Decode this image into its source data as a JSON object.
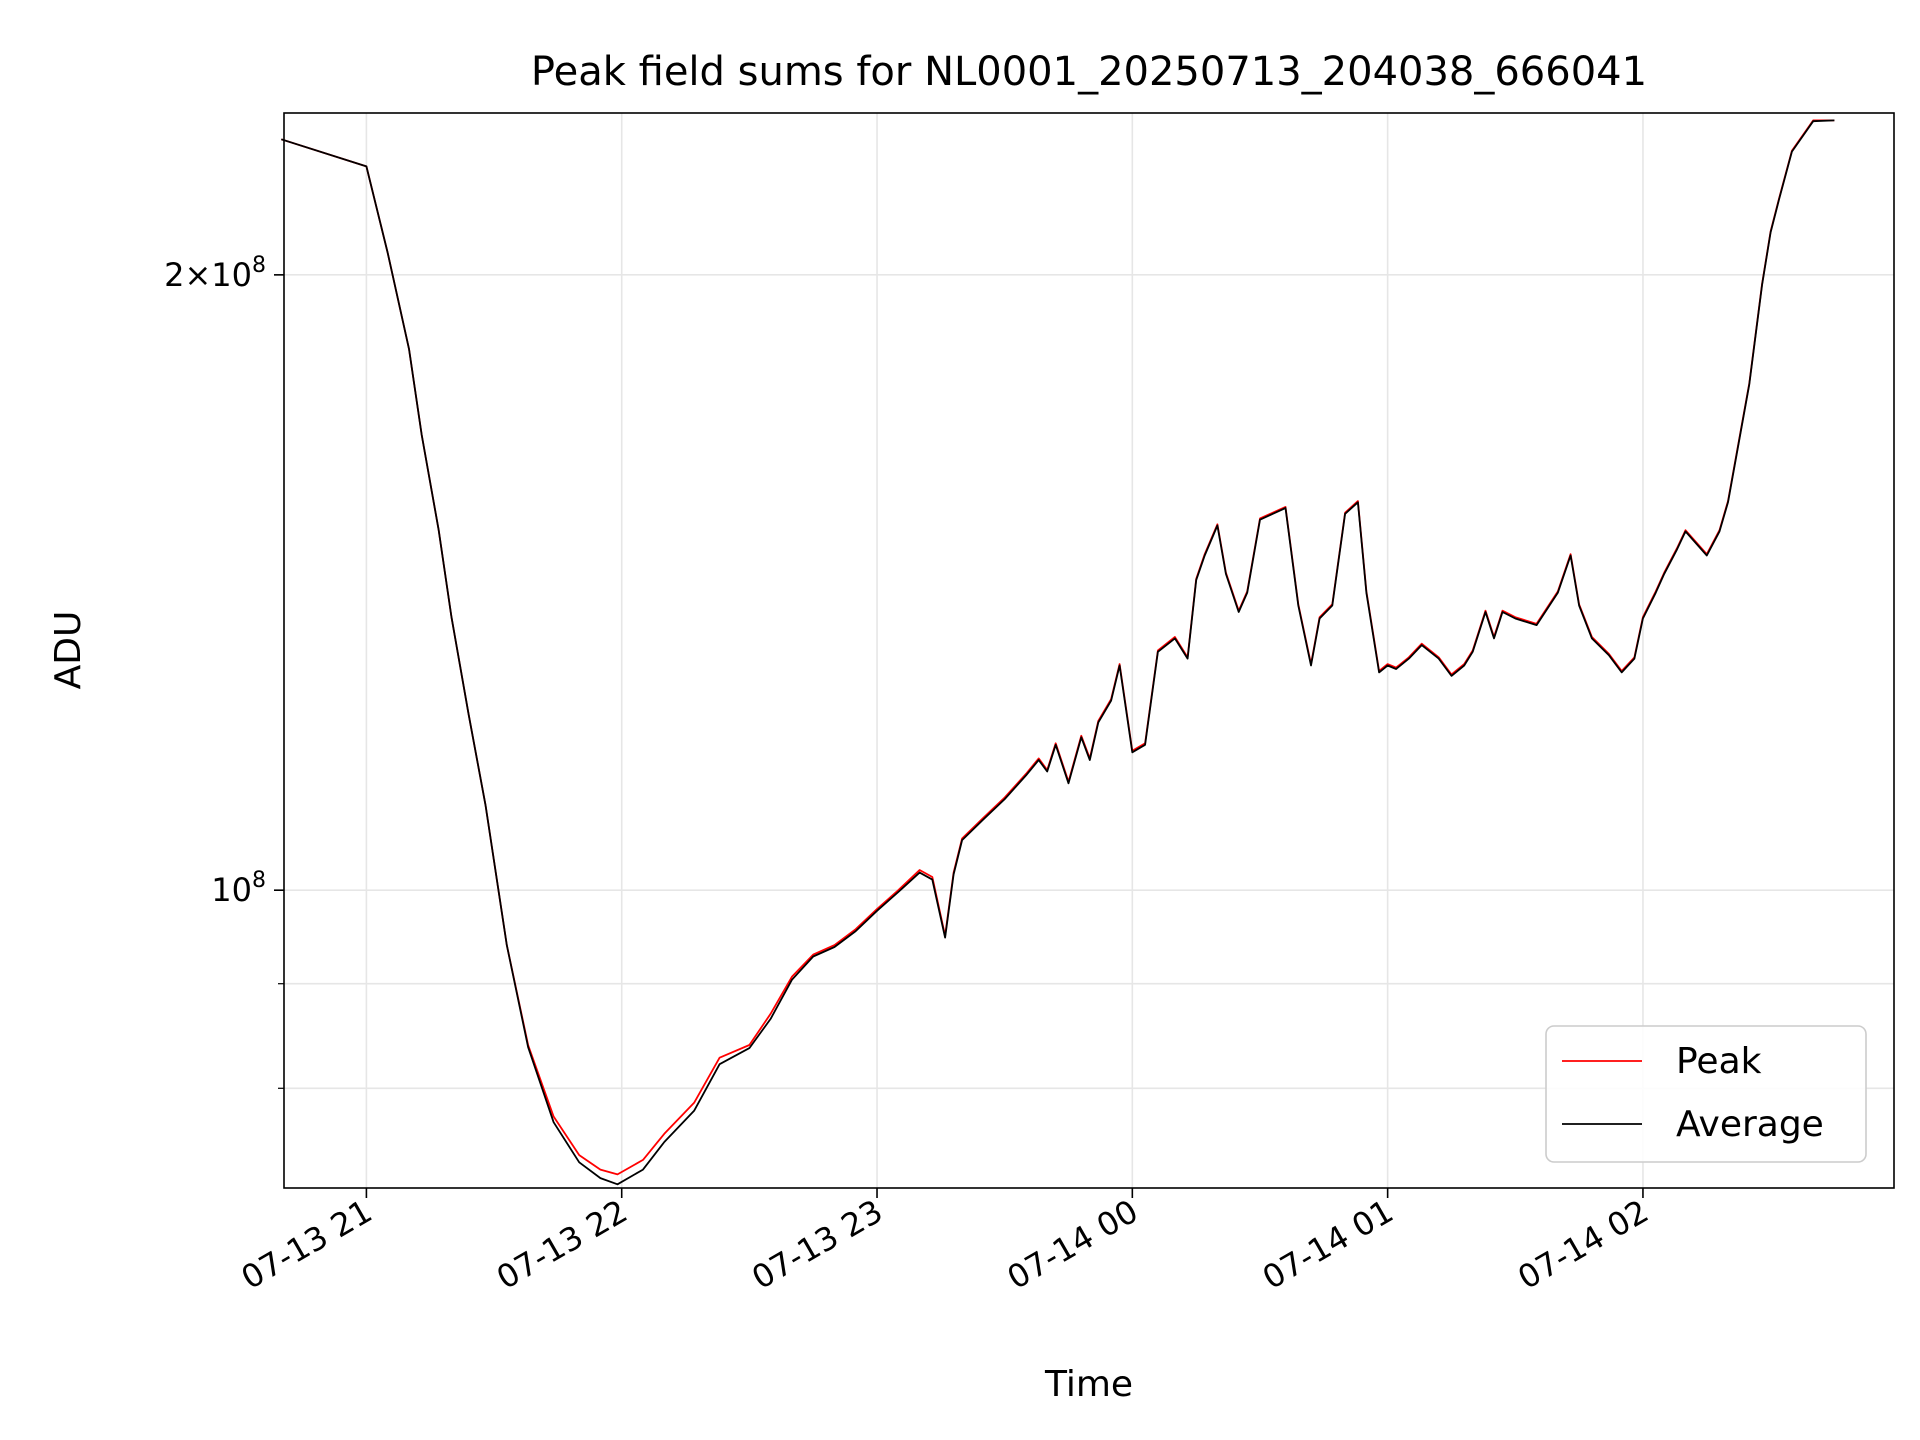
{
  "chart_data": {
    "type": "line",
    "title": "Peak field sums for NL0001_20250713_204038_666041",
    "xlabel": "Time",
    "ylabel": "ADU",
    "yscale": "log",
    "grid": true,
    "legend_position": "lower-right",
    "xlim": [
      "2025-07-13 20:40:38",
      "2025-07-14 02:59:00"
    ],
    "ylim": [
      71500000,
      240000000
    ],
    "x_ticks": [
      "07-13 21",
      "07-13 22",
      "07-13 23",
      "07-14 00",
      "07-14 01",
      "07-14 02"
    ],
    "y_ticks": [
      {
        "value": 100000000,
        "label_base": "10",
        "label_exp": "8"
      },
      {
        "value": 200000000,
        "label_base": "2×10",
        "label_exp": "8"
      }
    ],
    "y_minor_ticks": [
      80000000,
      90000000
    ],
    "series": [
      {
        "name": "Peak",
        "color": "#ff0000",
        "x": [
          "2025-07-13 20:40",
          "2025-07-13 21:00",
          "2025-07-13 21:05",
          "2025-07-13 21:10",
          "2025-07-13 21:13",
          "2025-07-13 21:17",
          "2025-07-13 21:20",
          "2025-07-13 21:24",
          "2025-07-13 21:28",
          "2025-07-13 21:33",
          "2025-07-13 21:38",
          "2025-07-13 21:44",
          "2025-07-13 21:50",
          "2025-07-13 21:55",
          "2025-07-13 21:59",
          "2025-07-13 22:05",
          "2025-07-13 22:10",
          "2025-07-13 22:17",
          "2025-07-13 22:23",
          "2025-07-13 22:30",
          "2025-07-13 22:35",
          "2025-07-13 22:40",
          "2025-07-13 22:45",
          "2025-07-13 22:50",
          "2025-07-13 22:55",
          "2025-07-13 23:00",
          "2025-07-13 23:05",
          "2025-07-13 23:10",
          "2025-07-13 23:13",
          "2025-07-13 23:16",
          "2025-07-13 23:18",
          "2025-07-13 23:20",
          "2025-07-13 23:25",
          "2025-07-13 23:30",
          "2025-07-13 23:35",
          "2025-07-13 23:38",
          "2025-07-13 23:40",
          "2025-07-13 23:42",
          "2025-07-13 23:45",
          "2025-07-13 23:48",
          "2025-07-13 23:50",
          "2025-07-13 23:52",
          "2025-07-13 23:55",
          "2025-07-13 23:57",
          "2025-07-14 00:00",
          "2025-07-14 00:03",
          "2025-07-14 00:06",
          "2025-07-14 00:10",
          "2025-07-14 00:13",
          "2025-07-14 00:15",
          "2025-07-14 00:17",
          "2025-07-14 00:20",
          "2025-07-14 00:22",
          "2025-07-14 00:25",
          "2025-07-14 00:27",
          "2025-07-14 00:30",
          "2025-07-14 00:33",
          "2025-07-14 00:36",
          "2025-07-14 00:39",
          "2025-07-14 00:42",
          "2025-07-14 00:44",
          "2025-07-14 00:47",
          "2025-07-14 00:50",
          "2025-07-14 00:53",
          "2025-07-14 00:55",
          "2025-07-14 00:58",
          "2025-07-14 01:00",
          "2025-07-14 01:02",
          "2025-07-14 01:05",
          "2025-07-14 01:08",
          "2025-07-14 01:12",
          "2025-07-14 01:15",
          "2025-07-14 01:18",
          "2025-07-14 01:20",
          "2025-07-14 01:23",
          "2025-07-14 01:25",
          "2025-07-14 01:27",
          "2025-07-14 01:30",
          "2025-07-14 01:35",
          "2025-07-14 01:40",
          "2025-07-14 01:43",
          "2025-07-14 01:45",
          "2025-07-14 01:48",
          "2025-07-14 01:52",
          "2025-07-14 01:55",
          "2025-07-14 01:58",
          "2025-07-14 02:00",
          "2025-07-14 02:03",
          "2025-07-14 02:05",
          "2025-07-14 02:08",
          "2025-07-14 02:10",
          "2025-07-14 02:15",
          "2025-07-14 02:18",
          "2025-07-14 02:20",
          "2025-07-14 02:25",
          "2025-07-14 02:28",
          "2025-07-14 02:30",
          "2025-07-14 02:32",
          "2025-07-14 02:35",
          "2025-07-14 02:40",
          "2025-07-14 02:45"
        ],
        "y": [
          233000000,
          226000000,
          205000000,
          184000000,
          167000000,
          150000000,
          136000000,
          122000000,
          110000000,
          94000000,
          84000000,
          77500000,
          74200000,
          73000000,
          72600000,
          73800000,
          76000000,
          78700000,
          82800000,
          84000000,
          87000000,
          90700000,
          93000000,
          94000000,
          95700000,
          97900000,
          100000000,
          102300000,
          101500000,
          95000000,
          102000000,
          106000000,
          108500000,
          111000000,
          114000000,
          116000000,
          114500000,
          118000000,
          113000000,
          119000000,
          116000000,
          121000000,
          124000000,
          129000000,
          117000000,
          118000000,
          131000000,
          133000000,
          130000000,
          142000000,
          146000000,
          151000000,
          143000000,
          137000000,
          140000000,
          152000000,
          153000000,
          154000000,
          138000000,
          129000000,
          136000000,
          138000000,
          153000000,
          155000000,
          140000000,
          128000000,
          129000000,
          128500000,
          130000000,
          132000000,
          130000000,
          127500000,
          129000000,
          131000000,
          137000000,
          133000000,
          137000000,
          136000000,
          135000000,
          140000000,
          146000000,
          138000000,
          133000000,
          130500000,
          128000000,
          130000000,
          136000000,
          140000000,
          143000000,
          147000000,
          150000000,
          146000000,
          150000000,
          155000000,
          177000000,
          198000000,
          210000000,
          218000000,
          230000000,
          238000000,
          238000000
        ]
      },
      {
        "name": "Average",
        "color": "#000000",
        "x": [
          "2025-07-13 20:40",
          "2025-07-13 21:00",
          "2025-07-13 21:05",
          "2025-07-13 21:10",
          "2025-07-13 21:13",
          "2025-07-13 21:17",
          "2025-07-13 21:20",
          "2025-07-13 21:24",
          "2025-07-13 21:28",
          "2025-07-13 21:33",
          "2025-07-13 21:38",
          "2025-07-13 21:44",
          "2025-07-13 21:50",
          "2025-07-13 21:55",
          "2025-07-13 21:59",
          "2025-07-13 22:05",
          "2025-07-13 22:10",
          "2025-07-13 22:17",
          "2025-07-13 22:23",
          "2025-07-13 22:30",
          "2025-07-13 22:35",
          "2025-07-13 22:40",
          "2025-07-13 22:45",
          "2025-07-13 22:50",
          "2025-07-13 22:55",
          "2025-07-13 23:00",
          "2025-07-13 23:05",
          "2025-07-13 23:10",
          "2025-07-13 23:13",
          "2025-07-13 23:16",
          "2025-07-13 23:18",
          "2025-07-13 23:20",
          "2025-07-13 23:25",
          "2025-07-13 23:30",
          "2025-07-13 23:35",
          "2025-07-13 23:38",
          "2025-07-13 23:40",
          "2025-07-13 23:42",
          "2025-07-13 23:45",
          "2025-07-13 23:48",
          "2025-07-13 23:50",
          "2025-07-13 23:52",
          "2025-07-13 23:55",
          "2025-07-13 23:57",
          "2025-07-14 00:00",
          "2025-07-14 00:03",
          "2025-07-14 00:06",
          "2025-07-14 00:10",
          "2025-07-14 00:13",
          "2025-07-14 00:15",
          "2025-07-14 00:17",
          "2025-07-14 00:20",
          "2025-07-14 00:22",
          "2025-07-14 00:25",
          "2025-07-14 00:27",
          "2025-07-14 00:30",
          "2025-07-14 00:33",
          "2025-07-14 00:36",
          "2025-07-14 00:39",
          "2025-07-14 00:42",
          "2025-07-14 00:44",
          "2025-07-14 00:47",
          "2025-07-14 00:50",
          "2025-07-14 00:53",
          "2025-07-14 00:55",
          "2025-07-14 00:58",
          "2025-07-14 01:00",
          "2025-07-14 01:02",
          "2025-07-14 01:05",
          "2025-07-14 01:08",
          "2025-07-14 01:12",
          "2025-07-14 01:15",
          "2025-07-14 01:18",
          "2025-07-14 01:20",
          "2025-07-14 01:23",
          "2025-07-14 01:25",
          "2025-07-14 01:27",
          "2025-07-14 01:30",
          "2025-07-14 01:35",
          "2025-07-14 01:40",
          "2025-07-14 01:43",
          "2025-07-14 01:45",
          "2025-07-14 01:48",
          "2025-07-14 01:52",
          "2025-07-14 01:55",
          "2025-07-14 01:58",
          "2025-07-14 02:00",
          "2025-07-14 02:03",
          "2025-07-14 02:05",
          "2025-07-14 02:08",
          "2025-07-14 02:10",
          "2025-07-14 02:15",
          "2025-07-14 02:18",
          "2025-07-14 02:20",
          "2025-07-14 02:25",
          "2025-07-14 02:28",
          "2025-07-14 02:30",
          "2025-07-14 02:32",
          "2025-07-14 02:35",
          "2025-07-14 02:40",
          "2025-07-14 02:45"
        ],
        "y": [
          233000000,
          226000000,
          205000000,
          184000000,
          167000000,
          150000000,
          136000000,
          122000000,
          110000000,
          94000000,
          83800000,
          77000000,
          73600000,
          72300000,
          71800000,
          73000000,
          75300000,
          78000000,
          82200000,
          83700000,
          86500000,
          90400000,
          92800000,
          93800000,
          95500000,
          97700000,
          99800000,
          102000000,
          101200000,
          94800000,
          101800000,
          105800000,
          108300000,
          110800000,
          113800000,
          115800000,
          114300000,
          117800000,
          112800000,
          118800000,
          115800000,
          120800000,
          123800000,
          128800000,
          116800000,
          117800000,
          130800000,
          132800000,
          129800000,
          141800000,
          145800000,
          150800000,
          142800000,
          136800000,
          139800000,
          151800000,
          152800000,
          153800000,
          137800000,
          128800000,
          135800000,
          137800000,
          152800000,
          154800000,
          139800000,
          127800000,
          128800000,
          128300000,
          129800000,
          131800000,
          129800000,
          127300000,
          128800000,
          130800000,
          136800000,
          132800000,
          136800000,
          135800000,
          134800000,
          139800000,
          145800000,
          137800000,
          132800000,
          130300000,
          127800000,
          129800000,
          135800000,
          139800000,
          142800000,
          146800000,
          149800000,
          145800000,
          149800000,
          154800000,
          176800000,
          197800000,
          209800000,
          217800000,
          229800000,
          237800000,
          238000000
        ]
      }
    ]
  }
}
